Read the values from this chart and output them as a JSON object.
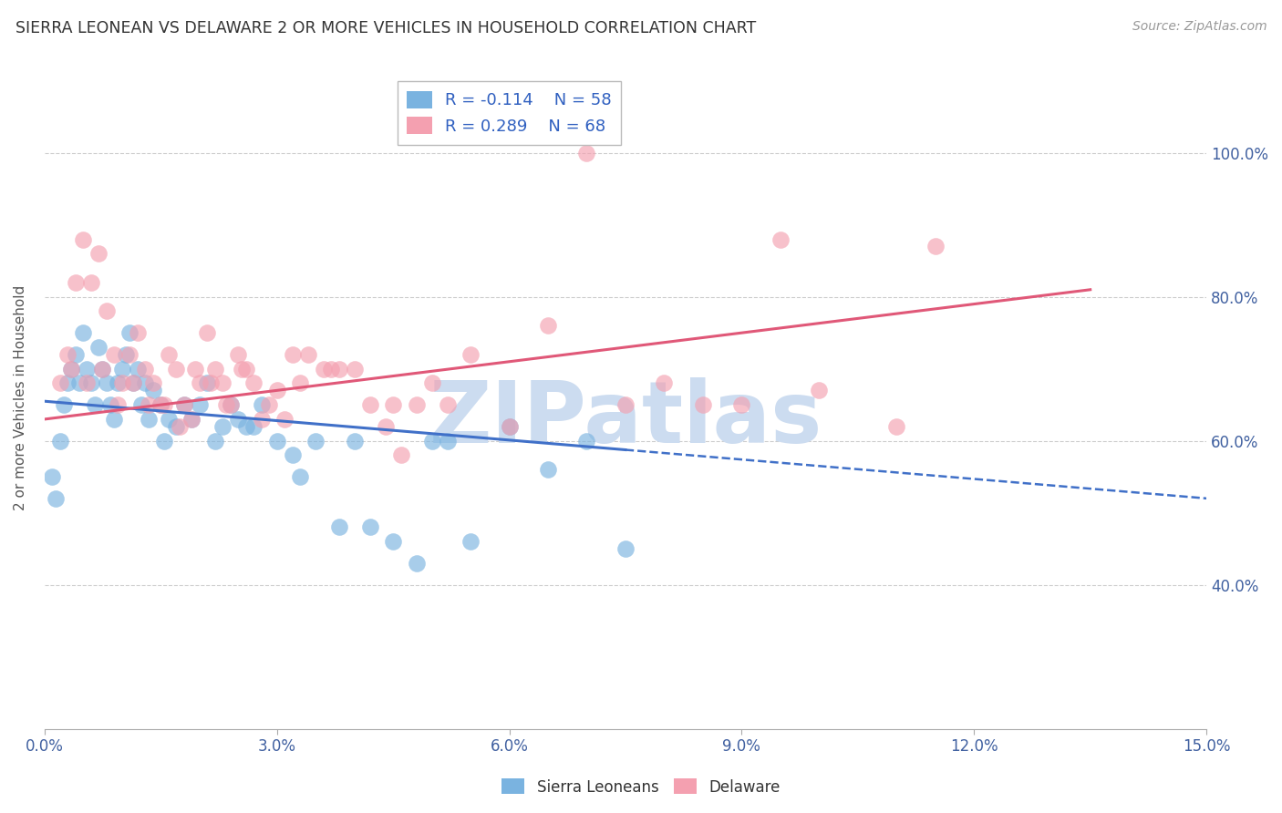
{
  "title": "SIERRA LEONEAN VS DELAWARE 2 OR MORE VEHICLES IN HOUSEHOLD CORRELATION CHART",
  "source": "Source: ZipAtlas.com",
  "blue_label": "Sierra Leoneans",
  "pink_label": "Delaware",
  "blue_R": "-0.114",
  "blue_N": "58",
  "pink_R": "0.289",
  "pink_N": "68",
  "blue_color": "#7ab3e0",
  "pink_color": "#f4a0b0",
  "blue_trend_color": "#4070c8",
  "pink_trend_color": "#e05878",
  "watermark": "ZIPatlas",
  "watermark_color": "#ccdcf0",
  "xlim": [
    0.0,
    15.0
  ],
  "ylim": [
    20.0,
    112.0
  ],
  "blue_trend_x0": 0.0,
  "blue_trend_y0": 65.5,
  "blue_trend_x1": 15.0,
  "blue_trend_y1": 52.0,
  "blue_solid_end": 7.5,
  "pink_trend_x0": 0.0,
  "pink_trend_y0": 63.0,
  "pink_trend_x1": 13.5,
  "pink_trend_y1": 81.0,
  "blue_scatter_x": [
    0.1,
    0.15,
    0.2,
    0.25,
    0.3,
    0.35,
    0.4,
    0.45,
    0.5,
    0.55,
    0.6,
    0.65,
    0.7,
    0.75,
    0.8,
    0.85,
    0.9,
    0.95,
    1.0,
    1.05,
    1.1,
    1.15,
    1.2,
    1.25,
    1.3,
    1.35,
    1.4,
    1.5,
    1.55,
    1.6,
    1.7,
    1.8,
    1.9,
    2.0,
    2.1,
    2.2,
    2.3,
    2.5,
    2.6,
    2.8,
    3.0,
    3.3,
    3.5,
    3.8,
    4.0,
    4.5,
    5.0,
    5.2,
    5.5,
    6.0,
    6.5,
    7.0,
    7.5,
    2.4,
    2.7,
    3.2,
    4.2,
    4.8
  ],
  "blue_scatter_y": [
    55,
    52,
    60,
    65,
    68,
    70,
    72,
    68,
    75,
    70,
    68,
    65,
    73,
    70,
    68,
    65,
    63,
    68,
    70,
    72,
    75,
    68,
    70,
    65,
    68,
    63,
    67,
    65,
    60,
    63,
    62,
    65,
    63,
    65,
    68,
    60,
    62,
    63,
    62,
    65,
    60,
    55,
    60,
    48,
    60,
    46,
    60,
    60,
    46,
    62,
    56,
    60,
    45,
    65,
    62,
    58,
    48,
    43
  ],
  "pink_scatter_x": [
    0.2,
    0.3,
    0.4,
    0.5,
    0.6,
    0.7,
    0.8,
    0.9,
    1.0,
    1.1,
    1.2,
    1.3,
    1.4,
    1.5,
    1.6,
    1.7,
    1.8,
    1.9,
    2.0,
    2.1,
    2.2,
    2.3,
    2.4,
    2.5,
    2.6,
    2.7,
    2.8,
    2.9,
    3.0,
    3.1,
    3.2,
    3.4,
    3.6,
    3.8,
    4.0,
    4.2,
    4.4,
    4.6,
    4.8,
    5.0,
    5.5,
    6.0,
    6.5,
    7.0,
    7.5,
    8.0,
    9.0,
    10.0,
    11.0,
    0.35,
    0.55,
    0.75,
    0.95,
    1.15,
    1.35,
    1.55,
    1.75,
    1.95,
    2.15,
    2.35,
    2.55,
    3.3,
    3.7,
    4.5,
    5.2,
    8.5,
    9.5,
    11.5
  ],
  "pink_scatter_y": [
    68,
    72,
    82,
    88,
    82,
    86,
    78,
    72,
    68,
    72,
    75,
    70,
    68,
    65,
    72,
    70,
    65,
    63,
    68,
    75,
    70,
    68,
    65,
    72,
    70,
    68,
    63,
    65,
    67,
    63,
    72,
    72,
    70,
    70,
    70,
    65,
    62,
    58,
    65,
    68,
    72,
    62,
    76,
    100,
    65,
    68,
    65,
    67,
    62,
    70,
    68,
    70,
    65,
    68,
    65,
    65,
    62,
    70,
    68,
    65,
    70,
    68,
    70,
    65,
    65,
    65,
    88,
    87
  ]
}
